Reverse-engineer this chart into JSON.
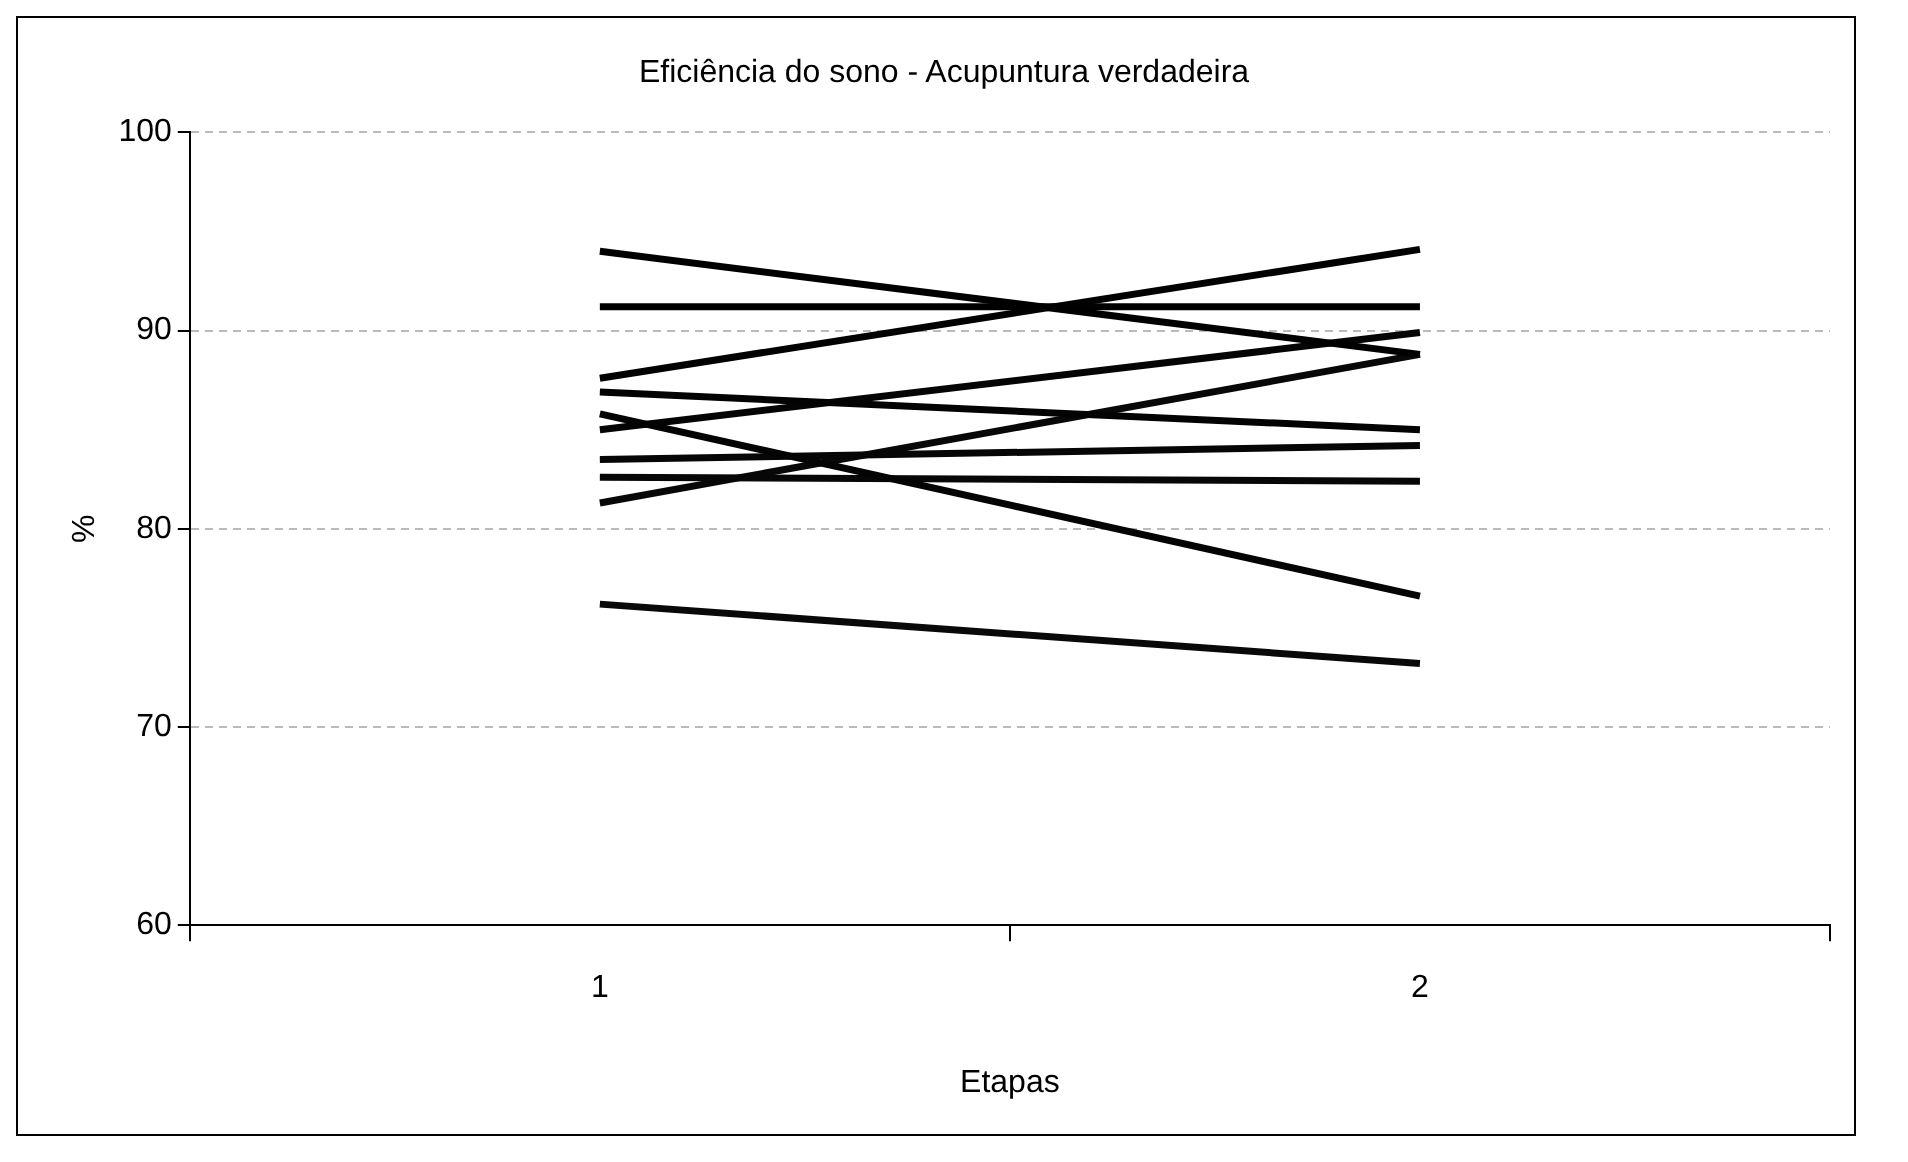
{
  "chart_data": {
    "type": "line",
    "title": "Eficiência do sono - Acupuntura verdadeira",
    "xlabel": "Etapas",
    "ylabel": "%",
    "categories": [
      "1",
      "2"
    ],
    "ylim": [
      60,
      100
    ],
    "yticks": [
      60,
      70,
      80,
      90,
      100
    ],
    "grid": "y",
    "legend": false,
    "marker": "none",
    "line_style": "solid",
    "series": [
      {
        "color": "#000000",
        "values": [
          94.0,
          88.8
        ]
      },
      {
        "color": "#010101",
        "values": [
          91.2,
          91.2
        ]
      },
      {
        "color": "#020202",
        "values": [
          87.6,
          94.1
        ]
      },
      {
        "color": "#030303",
        "values": [
          86.9,
          85.0
        ]
      },
      {
        "color": "#040404",
        "values": [
          85.8,
          76.6
        ]
      },
      {
        "color": "#050505",
        "values": [
          85.0,
          89.9
        ]
      },
      {
        "color": "#060606",
        "values": [
          83.5,
          84.2
        ]
      },
      {
        "color": "#070707",
        "values": [
          82.6,
          82.4
        ]
      },
      {
        "color": "#080808",
        "values": [
          81.3,
          88.8
        ]
      },
      {
        "color": "#090909",
        "values": [
          76.2,
          73.2
        ]
      }
    ]
  }
}
